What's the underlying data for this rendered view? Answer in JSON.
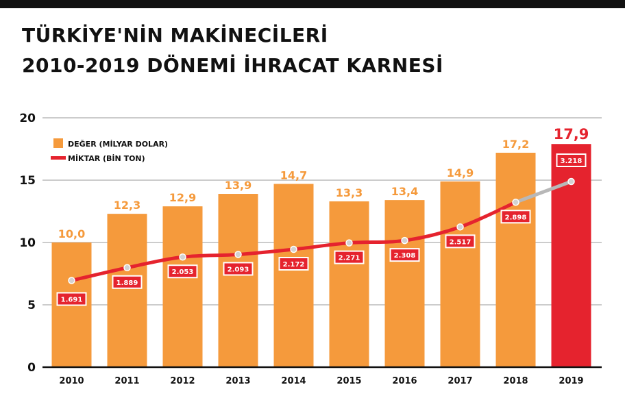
{
  "title": {
    "line1": "TÜRKİYE'NİN MAKİNECİLERİ",
    "line2": "2010-2019 DÖNEMİ İHRACAT KARNESİ"
  },
  "chart_data": {
    "type": "bar",
    "categories": [
      "2010",
      "2011",
      "2012",
      "2013",
      "2014",
      "2015",
      "2016",
      "2017",
      "2018",
      "2019"
    ],
    "series": [
      {
        "name": "DEĞER (MİLYAR DOLAR)",
        "kind": "bar",
        "values": [
          10.0,
          12.3,
          12.9,
          13.9,
          14.7,
          13.3,
          13.4,
          14.9,
          17.2,
          17.9
        ],
        "labels": [
          "10,0",
          "12,3",
          "12,9",
          "13,9",
          "14,7",
          "13,3",
          "13,4",
          "14,9",
          "17,2",
          "17,9"
        ],
        "color": "#F59A3C",
        "highlight_color": "#E5232E"
      },
      {
        "name": "MİKTAR (BİN TON)",
        "kind": "line",
        "values": [
          1691,
          1889,
          2053,
          2093,
          2172,
          2271,
          2308,
          2517,
          2898,
          3218
        ],
        "labels": [
          "1.691",
          "1.889",
          "2.053",
          "2.093",
          "2.172",
          "2.271",
          "2.308",
          "2.517",
          "2.898",
          "3.218"
        ],
        "color": "#E5232E"
      }
    ],
    "yticks": [
      "0",
      "5",
      "10",
      "15",
      "20"
    ],
    "ylim": [
      0,
      20
    ],
    "grid": true,
    "legend": "top-left"
  }
}
